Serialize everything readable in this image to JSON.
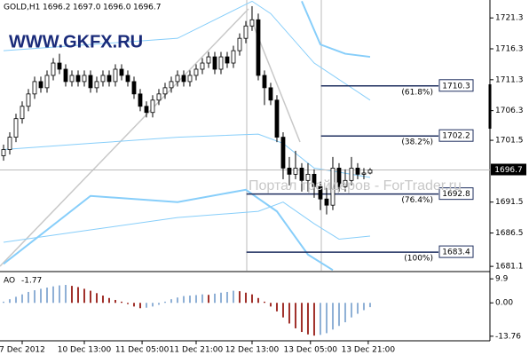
{
  "chart_data": [
    {
      "type": "candlestick",
      "header": {
        "symbol": "GOLD,H1",
        "values": [
          1696.2,
          {
            "value": 1697.0,
            "label": "1697.0"
          },
          {
            "value": 1696.0,
            "label": "1696.0"
          },
          1696.7
        ]
      },
      "watermarks": [
        "WWW.GKFX.RU",
        "Портал трейдеров - ForTrader.ru"
      ],
      "open": [
        1699,
        1700,
        1702,
        1705,
        1707,
        1709,
        1711,
        1710,
        1712,
        1714,
        1713,
        1711,
        1712,
        1711,
        1712,
        1710,
        1711,
        1712,
        1711,
        1713,
        1712,
        1711,
        1709,
        1707,
        1706,
        1708,
        1709,
        1710,
        1711,
        1712,
        1711,
        1712,
        1713,
        1714,
        1715,
        1713,
        1715,
        1714,
        1716,
        1718,
        1720,
        1721,
        1712,
        1710,
        1708,
        1702,
        1697,
        1696,
        1697,
        1695,
        1696,
        1694,
        1692,
        1691,
        1697,
        1694,
        1695,
        1697,
        1696,
        1696.2
      ],
      "high": [
        1700.8,
        1702.8,
        1705.8,
        1707.8,
        1709.8,
        1711.8,
        1711.8,
        1712.8,
        1714.8,
        1715.5,
        1713.8,
        1712.8,
        1712.8,
        1712.8,
        1712.8,
        1711.8,
        1712.8,
        1712.8,
        1713.8,
        1713.8,
        1712.8,
        1711.8,
        1709.8,
        1707.8,
        1708.8,
        1709.8,
        1710.8,
        1711.8,
        1712.8,
        1712.8,
        1712.8,
        1713.8,
        1714.8,
        1715.8,
        1715.8,
        1715.8,
        1715.8,
        1716.8,
        1718.8,
        1720.8,
        1723.2,
        1722,
        1712.8,
        1710.8,
        1708.8,
        1702.8,
        1698.8,
        1699.8,
        1697.8,
        1697.8,
        1696.8,
        1694.8,
        1693.8,
        1698.8,
        1697.8,
        1696.8,
        1698.8,
        1697.8,
        1697,
        1697.0
      ],
      "low": [
        1698.2,
        1699.2,
        1701.2,
        1704.2,
        1706.2,
        1708.2,
        1709.2,
        1709.2,
        1711.2,
        1712.2,
        1710.2,
        1710.2,
        1710.2,
        1710.2,
        1709.2,
        1709.2,
        1710.2,
        1710.2,
        1710.2,
        1711.2,
        1710.2,
        1708.2,
        1706.2,
        1705.2,
        1705.2,
        1707.2,
        1708.2,
        1709.2,
        1710.2,
        1710.2,
        1710.2,
        1711.2,
        1712.2,
        1713.2,
        1712.2,
        1712.2,
        1713.2,
        1713.2,
        1715.2,
        1717.2,
        1719.2,
        1711.2,
        1707.2,
        1707.2,
        1701.2,
        1695.2,
        1694.2,
        1695.2,
        1693.2,
        1693.2,
        1692.2,
        1690.2,
        1689.5,
        1690.2,
        1693.2,
        1693.2,
        1694.2,
        1695.2,
        1695.2,
        1696.0
      ],
      "close": [
        1700,
        1702,
        1705,
        1707,
        1709,
        1711,
        1710,
        1712,
        1714,
        1713,
        1711,
        1712,
        1711,
        1712,
        1710,
        1711,
        1712,
        1711,
        1713,
        1712,
        1711,
        1709,
        1707,
        1706,
        1708,
        1709,
        1710,
        1711,
        1712,
        1711,
        1712,
        1713,
        1714,
        1715,
        1713,
        1715,
        1714,
        1716,
        1718,
        1720,
        1721,
        1712,
        1710,
        1708,
        1702,
        1697,
        1696,
        1697,
        1695,
        1696,
        1694,
        1692,
        1691,
        1697,
        1694,
        1695,
        1697,
        1696,
        1696.2,
        1696.7
      ],
      "up_color": "#ffffff",
      "down_color": "#000000",
      "wick_color": "#000000",
      "last_price": 1696.7,
      "series": [
        {
          "color": "#87cefa",
          "line_width": 2,
          "x": [
            0,
            14,
            28,
            39,
            44,
            49,
            53
          ],
          "values": [
            1681.5,
            1692.5,
            1691.5,
            1693.5,
            1690,
            1683,
            1680.5
          ]
        },
        {
          "color": "#87cefa",
          "line_width": 2,
          "x": [
            48,
            51,
            55,
            59
          ],
          "values": [
            1724,
            1717,
            1715.5,
            1715
          ]
        },
        {
          "color": "#87cefa",
          "line_width": 1,
          "x": [
            0,
            14,
            28,
            40,
            43,
            50,
            59
          ],
          "values": [
            1716,
            1717,
            1718,
            1724,
            1722,
            1714,
            1708
          ]
        },
        {
          "color": "#87cefa",
          "line_width": 1,
          "x": [
            0,
            14,
            28,
            41,
            45,
            50,
            59
          ],
          "values": [
            1700,
            1701,
            1702,
            1702.5,
            1701,
            1697,
            1695.5
          ]
        },
        {
          "color": "#87cefa",
          "line_width": 1,
          "x": [
            0,
            14,
            28,
            41,
            45,
            50,
            54,
            59
          ],
          "values": [
            1685,
            1687,
            1689,
            1690,
            1691.5,
            1688,
            1685.5,
            1686
          ]
        }
      ],
      "fib_levels": [
        {
          "price": 1710.3,
          "label": "(61.8%)"
        },
        {
          "price": 1702.2,
          "label": "(38.2%)"
        },
        {
          "price": 1692.8,
          "label": "(76.4%)"
        },
        {
          "price": 1683.4,
          "label": "(100%)"
        }
      ],
      "fib_color": "#1f2f5f",
      "xlim": [
        -0.57,
        78.29
      ],
      "xticks": [
        {
          "value": 3,
          "label": "7 Dec 2012"
        },
        {
          "value": 13,
          "label": "10 Dec 13:00"
        },
        {
          "value": 22.3,
          "label": "11 Dec 05:00"
        },
        {
          "value": 31,
          "label": "11 Dec 21:00"
        },
        {
          "value": 40,
          "label": "12 Dec 13:00"
        },
        {
          "value": 49.4,
          "label": "13 Dec 05:00"
        },
        {
          "value": 58.7,
          "label": "13 Dec 21:00"
        }
      ],
      "ylim": [
        1680.4,
        1724.2
      ],
      "yticks": [
        1721.3,
        1716.3,
        1711.3,
        1706.3,
        1701.5,
        1691.5,
        1686.5,
        1681.1
      ]
    },
    {
      "type": "bar",
      "title": "AO",
      "values": [
        0.5,
        1.5,
        2.5,
        3.5,
        4.5,
        5.2,
        5.8,
        6.3,
        6.8,
        7.2,
        7.4,
        7.0,
        6.5,
        5.8,
        5.0,
        4.0,
        3.0,
        2.0,
        1.2,
        0.5,
        -0.5,
        -1.5,
        -2.2,
        -2.0,
        -1.5,
        -0.8,
        0.5,
        1.5,
        2.2,
        2.8,
        3.0,
        3.2,
        3.5,
        3.3,
        3.8,
        4.2,
        4.5,
        5.0,
        4.8,
        4.2,
        3.5,
        2.0,
        0.5,
        -1.5,
        -3.5,
        -6,
        -8.5,
        -10.5,
        -12,
        -13,
        -13.5,
        -13.2,
        -12.5,
        -11,
        -9.5,
        -8,
        -6,
        -4.5,
        -3,
        -1.77
      ],
      "up_color": "#8fb0d6",
      "down_color": "#a0302a",
      "ylim": [
        -15.64,
        12.53
      ],
      "yticks": [
        9.9,
        {
          "value": 0,
          "label": "0.00"
        },
        -13.76
      ]
    }
  ]
}
